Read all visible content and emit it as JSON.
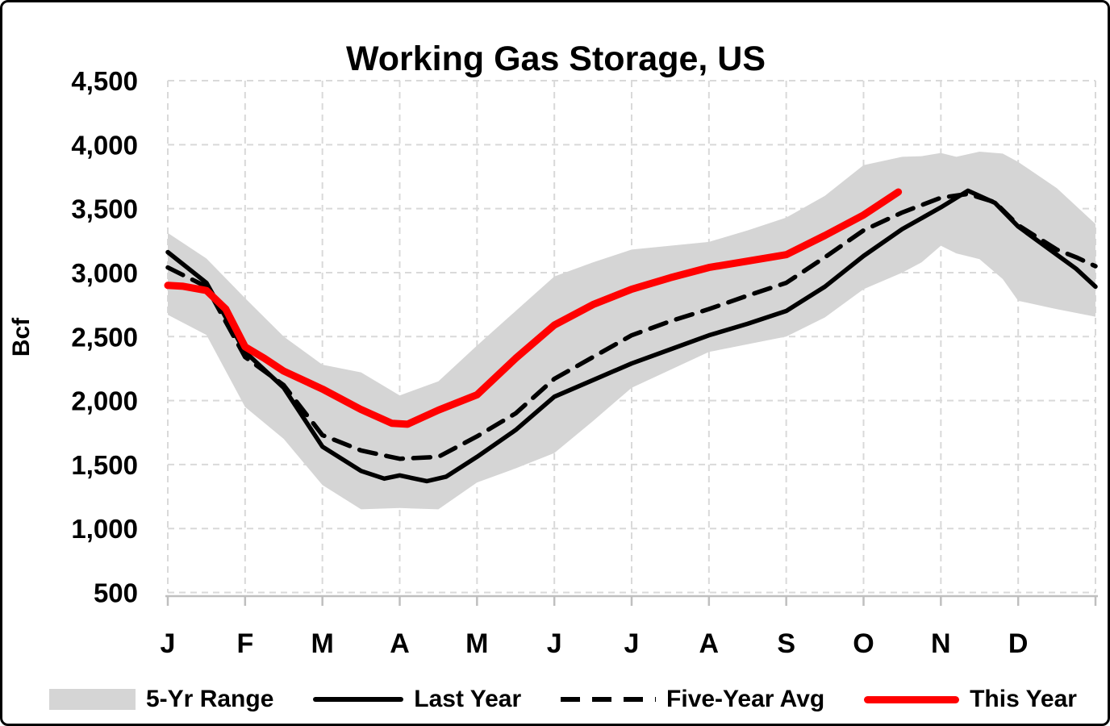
{
  "title": "Working Gas Storage, US",
  "y_axis": {
    "label": "Bcf",
    "ticks": [
      "4,500",
      "4,000",
      "3,500",
      "3,000",
      "2,500",
      "2,000",
      "1,500",
      "1,000",
      "500"
    ],
    "min": 500,
    "max": 4500,
    "step": 500
  },
  "x_axis": {
    "labels": [
      "J",
      "F",
      "M",
      "A",
      "M",
      "J",
      "J",
      "A",
      "S",
      "O",
      "N",
      "D"
    ]
  },
  "legend": {
    "items": [
      {
        "label": "5-Yr Range",
        "type": "band",
        "color": "#d5d5d5"
      },
      {
        "label": "Last Year",
        "type": "solid-line",
        "color": "#000000"
      },
      {
        "label": "Five-Year Avg",
        "type": "dashed-line",
        "color": "#000000"
      },
      {
        "label": "This Year",
        "type": "thick-line",
        "color": "#ff0000"
      }
    ]
  },
  "chart_data": {
    "type": "line",
    "title": "Working Gas Storage, US",
    "xlabel": "",
    "ylabel": "Bcf",
    "ylim": [
      500,
      4500
    ],
    "x_domain_months": [
      0,
      12
    ],
    "grid": "dashed",
    "legend_position": "bottom",
    "band": {
      "name": "5-Yr Range",
      "fill": "#d5d5d5",
      "x": [
        0,
        0.5,
        1,
        1.5,
        2,
        2.5,
        3,
        3.5,
        4,
        4.5,
        5,
        5.5,
        6,
        6.5,
        7,
        7.5,
        8,
        8.5,
        9,
        9.5,
        9.75,
        10,
        10.2,
        10.5,
        10.8,
        11,
        11.5,
        12
      ],
      "high": [
        3310,
        3110,
        2800,
        2500,
        2280,
        2220,
        2040,
        2150,
        2430,
        2700,
        2970,
        3080,
        3180,
        3210,
        3240,
        3330,
        3430,
        3600,
        3840,
        3905,
        3910,
        3935,
        3905,
        3945,
        3930,
        3865,
        3660,
        3380
      ],
      "low": [
        2670,
        2513,
        1950,
        1700,
        1340,
        1150,
        1160,
        1150,
        1360,
        1470,
        1590,
        1840,
        2100,
        2240,
        2380,
        2440,
        2500,
        2650,
        2870,
        3000,
        3080,
        3210,
        3150,
        3105,
        2950,
        2780,
        2714,
        2655
      ]
    },
    "series": [
      {
        "name": "Last Year",
        "color": "#000000",
        "style": "solid",
        "width": 5.5,
        "x": [
          0,
          0.5,
          1,
          1.5,
          2,
          2.5,
          2.8,
          3.0,
          3.35,
          3.6,
          4,
          4.5,
          5,
          5.5,
          6,
          6.5,
          7,
          7.5,
          8,
          8.5,
          9,
          9.5,
          10,
          10.35,
          10.7,
          11,
          11.5,
          11.75,
          12
        ],
        "y": [
          3160,
          2920,
          2380,
          2100,
          1640,
          1450,
          1390,
          1415,
          1370,
          1405,
          1560,
          1770,
          2030,
          2160,
          2290,
          2400,
          2510,
          2600,
          2700,
          2890,
          3130,
          3340,
          3510,
          3640,
          3545,
          3360,
          3140,
          3030,
          2890
        ]
      },
      {
        "name": "Five-Year Avg",
        "color": "#000000",
        "style": "dashed",
        "width": 5.5,
        "x": [
          0,
          0.5,
          1,
          1.5,
          2,
          2.5,
          3,
          3.5,
          4,
          4.5,
          5,
          5.5,
          6,
          6.5,
          7,
          7.5,
          8,
          8.5,
          9,
          9.5,
          10,
          10.35,
          10.7,
          11,
          11.5,
          11.75,
          12
        ],
        "y": [
          3040,
          2890,
          2340,
          2120,
          1730,
          1610,
          1545,
          1560,
          1720,
          1900,
          2170,
          2340,
          2510,
          2620,
          2715,
          2820,
          2920,
          3120,
          3330,
          3470,
          3585,
          3615,
          3550,
          3370,
          3180,
          3120,
          3050
        ]
      },
      {
        "name": "This Year",
        "color": "#ff0000",
        "style": "solid",
        "width": 9,
        "x": [
          0,
          0.2,
          0.5,
          0.75,
          1,
          1.25,
          1.5,
          2,
          2.5,
          2.9,
          3.1,
          3.5,
          4,
          4.5,
          5,
          5.5,
          6,
          6.5,
          7,
          7.5,
          8,
          8.5,
          9,
          9.45
        ],
        "y": [
          2900,
          2893,
          2860,
          2715,
          2420,
          2330,
          2230,
          2090,
          1930,
          1822,
          1815,
          1925,
          2045,
          2330,
          2590,
          2750,
          2870,
          2960,
          3040,
          3090,
          3140,
          3290,
          3450,
          3630
        ]
      }
    ]
  }
}
